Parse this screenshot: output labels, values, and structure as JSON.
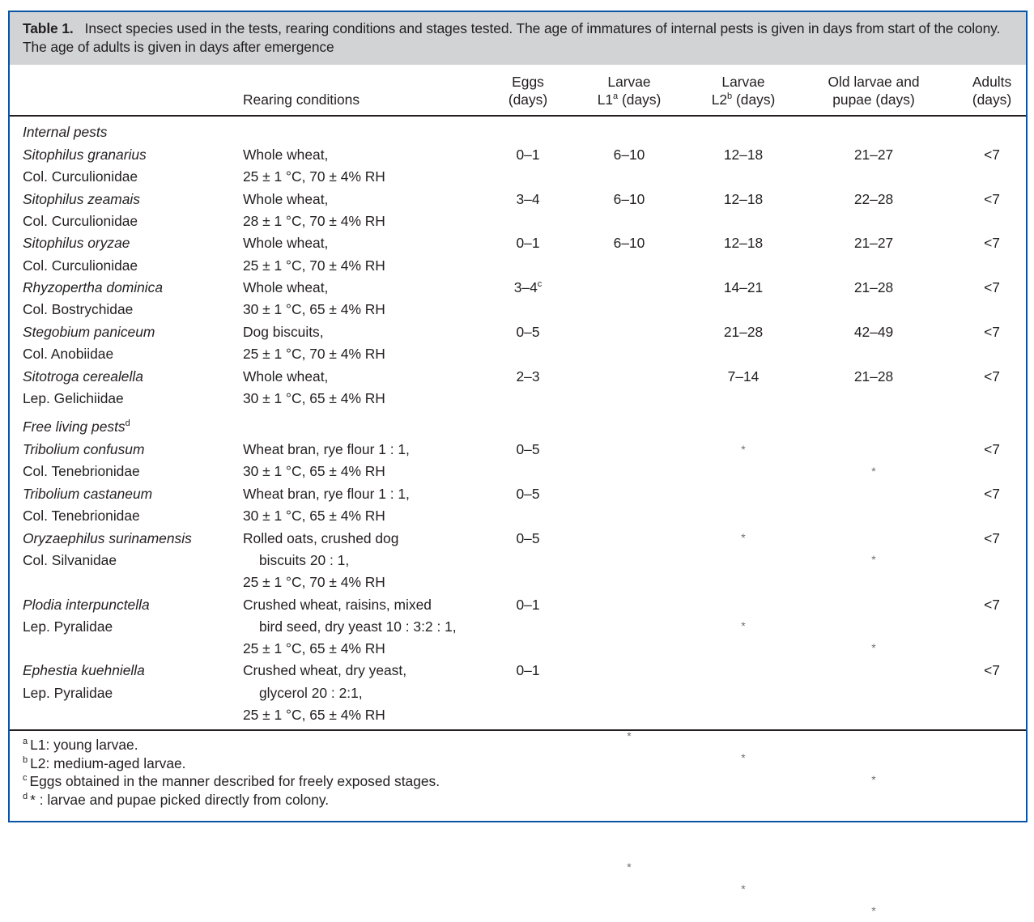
{
  "caption": {
    "label": "Table 1.",
    "text": "Insect species used in the tests, rearing conditions and stages tested. The age of immatures of internal pests is given in days from start of the colony. The age of adults is given in days after emergence"
  },
  "header": {
    "rearing": "Rearing conditions",
    "eggs": [
      "Eggs",
      "(days)"
    ],
    "l1": [
      "Larvae",
      "L1",
      "a",
      " (days)"
    ],
    "l2": [
      "Larvae",
      "L2",
      "b",
      " (days)"
    ],
    "old": [
      "Old larvae and",
      "pupae (days)"
    ],
    "adults": [
      "Adults",
      "(days)"
    ]
  },
  "groups": [
    {
      "label": "Internal pests",
      "sup": "",
      "rows": [
        {
          "species": "Sitophilus granarius",
          "family": "Col. Curculionidae",
          "rearing": [
            "Whole wheat,",
            "25 ± 1 °C, 70 ± 4% RH"
          ],
          "eggs": "0–1",
          "eggs_sup": "",
          "l1": "6–10",
          "l2": "12–18",
          "old": "21–27",
          "adults": "<7"
        },
        {
          "species": "Sitophilus zeamais",
          "family": "Col. Curculionidae",
          "rearing": [
            "Whole wheat,",
            "28 ± 1 °C, 70 ± 4% RH"
          ],
          "eggs": "3–4",
          "eggs_sup": "",
          "l1": "6–10",
          "l2": "12–18",
          "old": "22–28",
          "adults": "<7"
        },
        {
          "species": "Sitophilus oryzae",
          "family": "Col. Curculionidae",
          "rearing": [
            "Whole wheat,",
            "25 ± 1 °C, 70 ± 4% RH"
          ],
          "eggs": "0–1",
          "eggs_sup": "",
          "l1": "6–10",
          "l2": "12–18",
          "old": "21–27",
          "adults": "<7"
        },
        {
          "species": "Rhyzopertha dominica",
          "family": "Col. Bostrychidae",
          "rearing": [
            "Whole wheat,",
            "30 ± 1 °C, 65 ± 4% RH"
          ],
          "eggs": "3–4",
          "eggs_sup": "c",
          "l1": "",
          "l2": "14–21",
          "old": "21–28",
          "adults": "<7"
        },
        {
          "species": "Stegobium paniceum",
          "family": "Col. Anobiidae",
          "rearing": [
            "Dog biscuits,",
            "25 ± 1 °C, 70 ± 4% RH"
          ],
          "eggs": "0–5",
          "eggs_sup": "",
          "l1": "",
          "l2": "21–28",
          "old": "42–49",
          "adults": "<7"
        },
        {
          "species": "Sitotroga cerealella",
          "family": "Lep. Gelichiidae",
          "rearing": [
            "Whole wheat,",
            "30 ± 1 °C, 65 ± 4% RH"
          ],
          "eggs": "2–3",
          "eggs_sup": "",
          "l1": "",
          "l2": "7–14",
          "old": "21–28",
          "adults": "<7"
        }
      ]
    },
    {
      "label": "Free living pests",
      "sup": "d",
      "rows": [
        {
          "species": "Tribolium confusum",
          "family": "Col. Tenebrionidae",
          "rearing": [
            "Wheat bran, rye flour 1 : 1,",
            "30 ± 1 °C, 65 ± 4% RH"
          ],
          "eggs": "0–5",
          "eggs_sup": "",
          "l1": "",
          "l2": "*",
          "old": "*",
          "adults": "<7"
        },
        {
          "species": "Tribolium castaneum",
          "family": "Col. Tenebrionidae",
          "rearing": [
            "Wheat bran, rye flour 1 : 1,",
            "30 ± 1 °C, 65 ± 4% RH"
          ],
          "eggs": "0–5",
          "eggs_sup": "",
          "l1": "",
          "l2": "*",
          "old": "*",
          "adults": "<7"
        },
        {
          "species": "Oryzaephilus surinamensis",
          "family": "Col. Silvanidae",
          "rearing": [
            "Rolled oats, crushed dog",
            "biscuits 20 : 1,",
            "25 ± 1 °C, 70 ± 4% RH"
          ],
          "eggs": "0–5",
          "eggs_sup": "",
          "l1": "",
          "l2": "*",
          "old": "*",
          "adults": "<7"
        },
        {
          "species": "Plodia interpunctella",
          "family": "Lep. Pyralidae",
          "rearing": [
            "Crushed wheat, raisins, mixed",
            "bird seed, dry yeast 10 : 3:2 : 1,",
            "25 ± 1 °C, 65 ± 4% RH"
          ],
          "eggs": "0–1",
          "eggs_sup": "",
          "l1": "*",
          "l2": "*",
          "old": "*",
          "adults": "<7"
        },
        {
          "species": "Ephestia kuehniella",
          "family": "Lep. Pyralidae",
          "rearing": [
            "Crushed wheat, dry yeast,",
            "glycerol 20 : 2:1,",
            "25 ± 1 °C, 65 ± 4% RH"
          ],
          "eggs": "0–1",
          "eggs_sup": "",
          "l1": "*",
          "l2": "*",
          "old": "*",
          "adults": "<7"
        }
      ]
    }
  ],
  "footnotes": [
    {
      "mark": "a",
      "text": "L1: young larvae."
    },
    {
      "mark": "b",
      "text": "L2: medium-aged larvae."
    },
    {
      "mark": "c",
      "text": "Eggs obtained in the manner described for freely exposed stages."
    },
    {
      "mark": "d",
      "text": "* : larvae and pupae picked directly from colony."
    }
  ],
  "colors": {
    "frame": "#0a55a3",
    "caption_bg": "#d1d3d4",
    "text": "#231f20"
  }
}
